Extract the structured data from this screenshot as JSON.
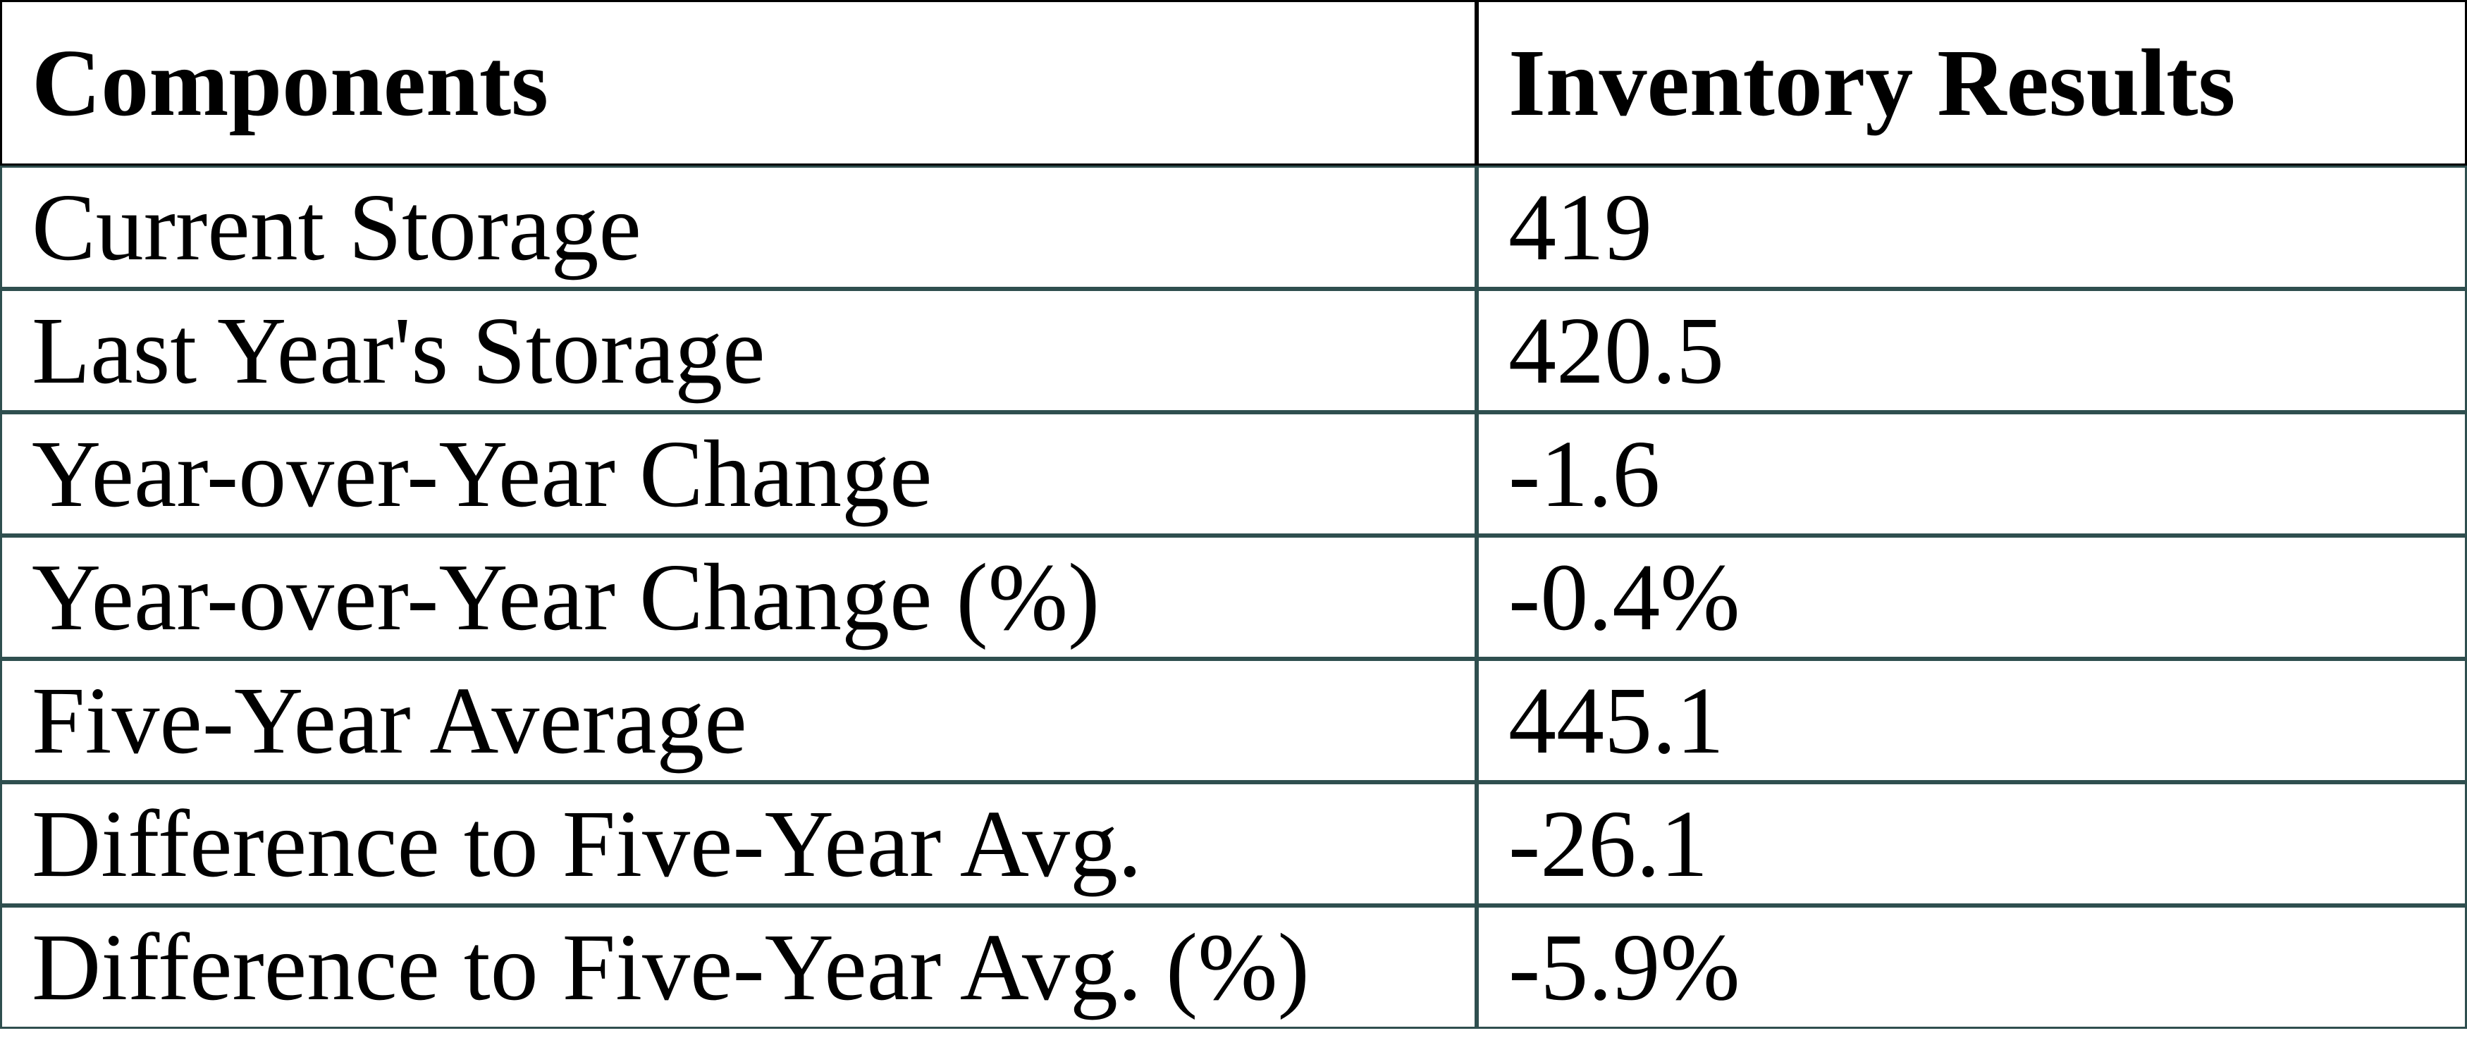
{
  "table": {
    "columns": [
      "Components",
      "Inventory Results"
    ],
    "rows": [
      {
        "label": "Current Storage",
        "value": "419"
      },
      {
        "label": "Last Year's Storage",
        "value": "420.5"
      },
      {
        "label": "Year-over-Year Change",
        "value": "-1.6"
      },
      {
        "label": "Year-over-Year Change (%)",
        "value": "-0.4%"
      },
      {
        "label": "Five-Year Average",
        "value": "445.1"
      },
      {
        "label": "Difference to Five-Year Avg.",
        "value": "-26.1"
      },
      {
        "label": "Difference to Five-Year Avg. (%)",
        "value": "-5.9%"
      }
    ]
  },
  "chart_data": {
    "type": "table",
    "title": "",
    "columns": [
      "Components",
      "Inventory Results"
    ],
    "rows": [
      [
        "Current Storage",
        "419"
      ],
      [
        "Last Year's Storage",
        "420.5"
      ],
      [
        "Year-over-Year Change",
        "-1.6"
      ],
      [
        "Year-over-Year Change (%)",
        "-0.4%"
      ],
      [
        "Five-Year Average",
        "445.1"
      ],
      [
        "Difference to Five-Year Avg.",
        "-26.1"
      ],
      [
        "Difference to Five-Year Avg. (%)",
        "-5.9%"
      ]
    ],
    "layout": {
      "header_border_color": "#000000",
      "body_border_color": "#2F4F4F",
      "grid": true
    }
  },
  "colors": {
    "header_border": "#000000",
    "body_border": "#2F4F4F",
    "text": "#000000",
    "background": "#FFFFFF"
  }
}
